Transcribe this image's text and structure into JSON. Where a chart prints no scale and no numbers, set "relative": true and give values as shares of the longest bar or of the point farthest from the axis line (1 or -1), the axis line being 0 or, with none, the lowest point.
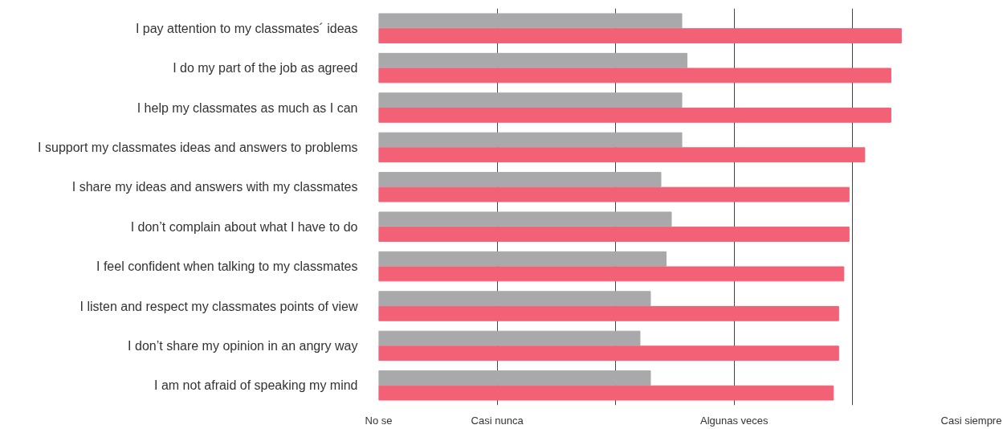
{
  "chart_data": {
    "type": "bar",
    "orientation": "horizontal",
    "relative": true,
    "categories": [
      "I pay attention to my classmates´ ideas",
      "I do my part of the job as agreed",
      "I help my classmates as much as I can",
      "I support my classmates ideas and answers to problems",
      "I share my ideas and answers with my classmates",
      "I don’t complain about what I have to do",
      "I feel confident when talking to my classmates",
      "I listen and respect my classmates points of view",
      "I don’t share my opinion in an angry way",
      "I am not afraid of speaking my mind"
    ],
    "series": [
      {
        "color": "#a9a9ab",
        "values": [
          0.58,
          0.59,
          0.58,
          0.58,
          0.54,
          0.56,
          0.55,
          0.52,
          0.5,
          0.52
        ]
      },
      {
        "color": "#f26176",
        "values": [
          1,
          0.98,
          0.98,
          0.93,
          0.9,
          0.9,
          0.89,
          0.88,
          0.88,
          0.87
        ]
      }
    ],
    "annotations": [
      "No se",
      "Casi nunca",
      null,
      "Algunas veces",
      null,
      "Casi siempre"
    ],
    "grid": "x"
  }
}
